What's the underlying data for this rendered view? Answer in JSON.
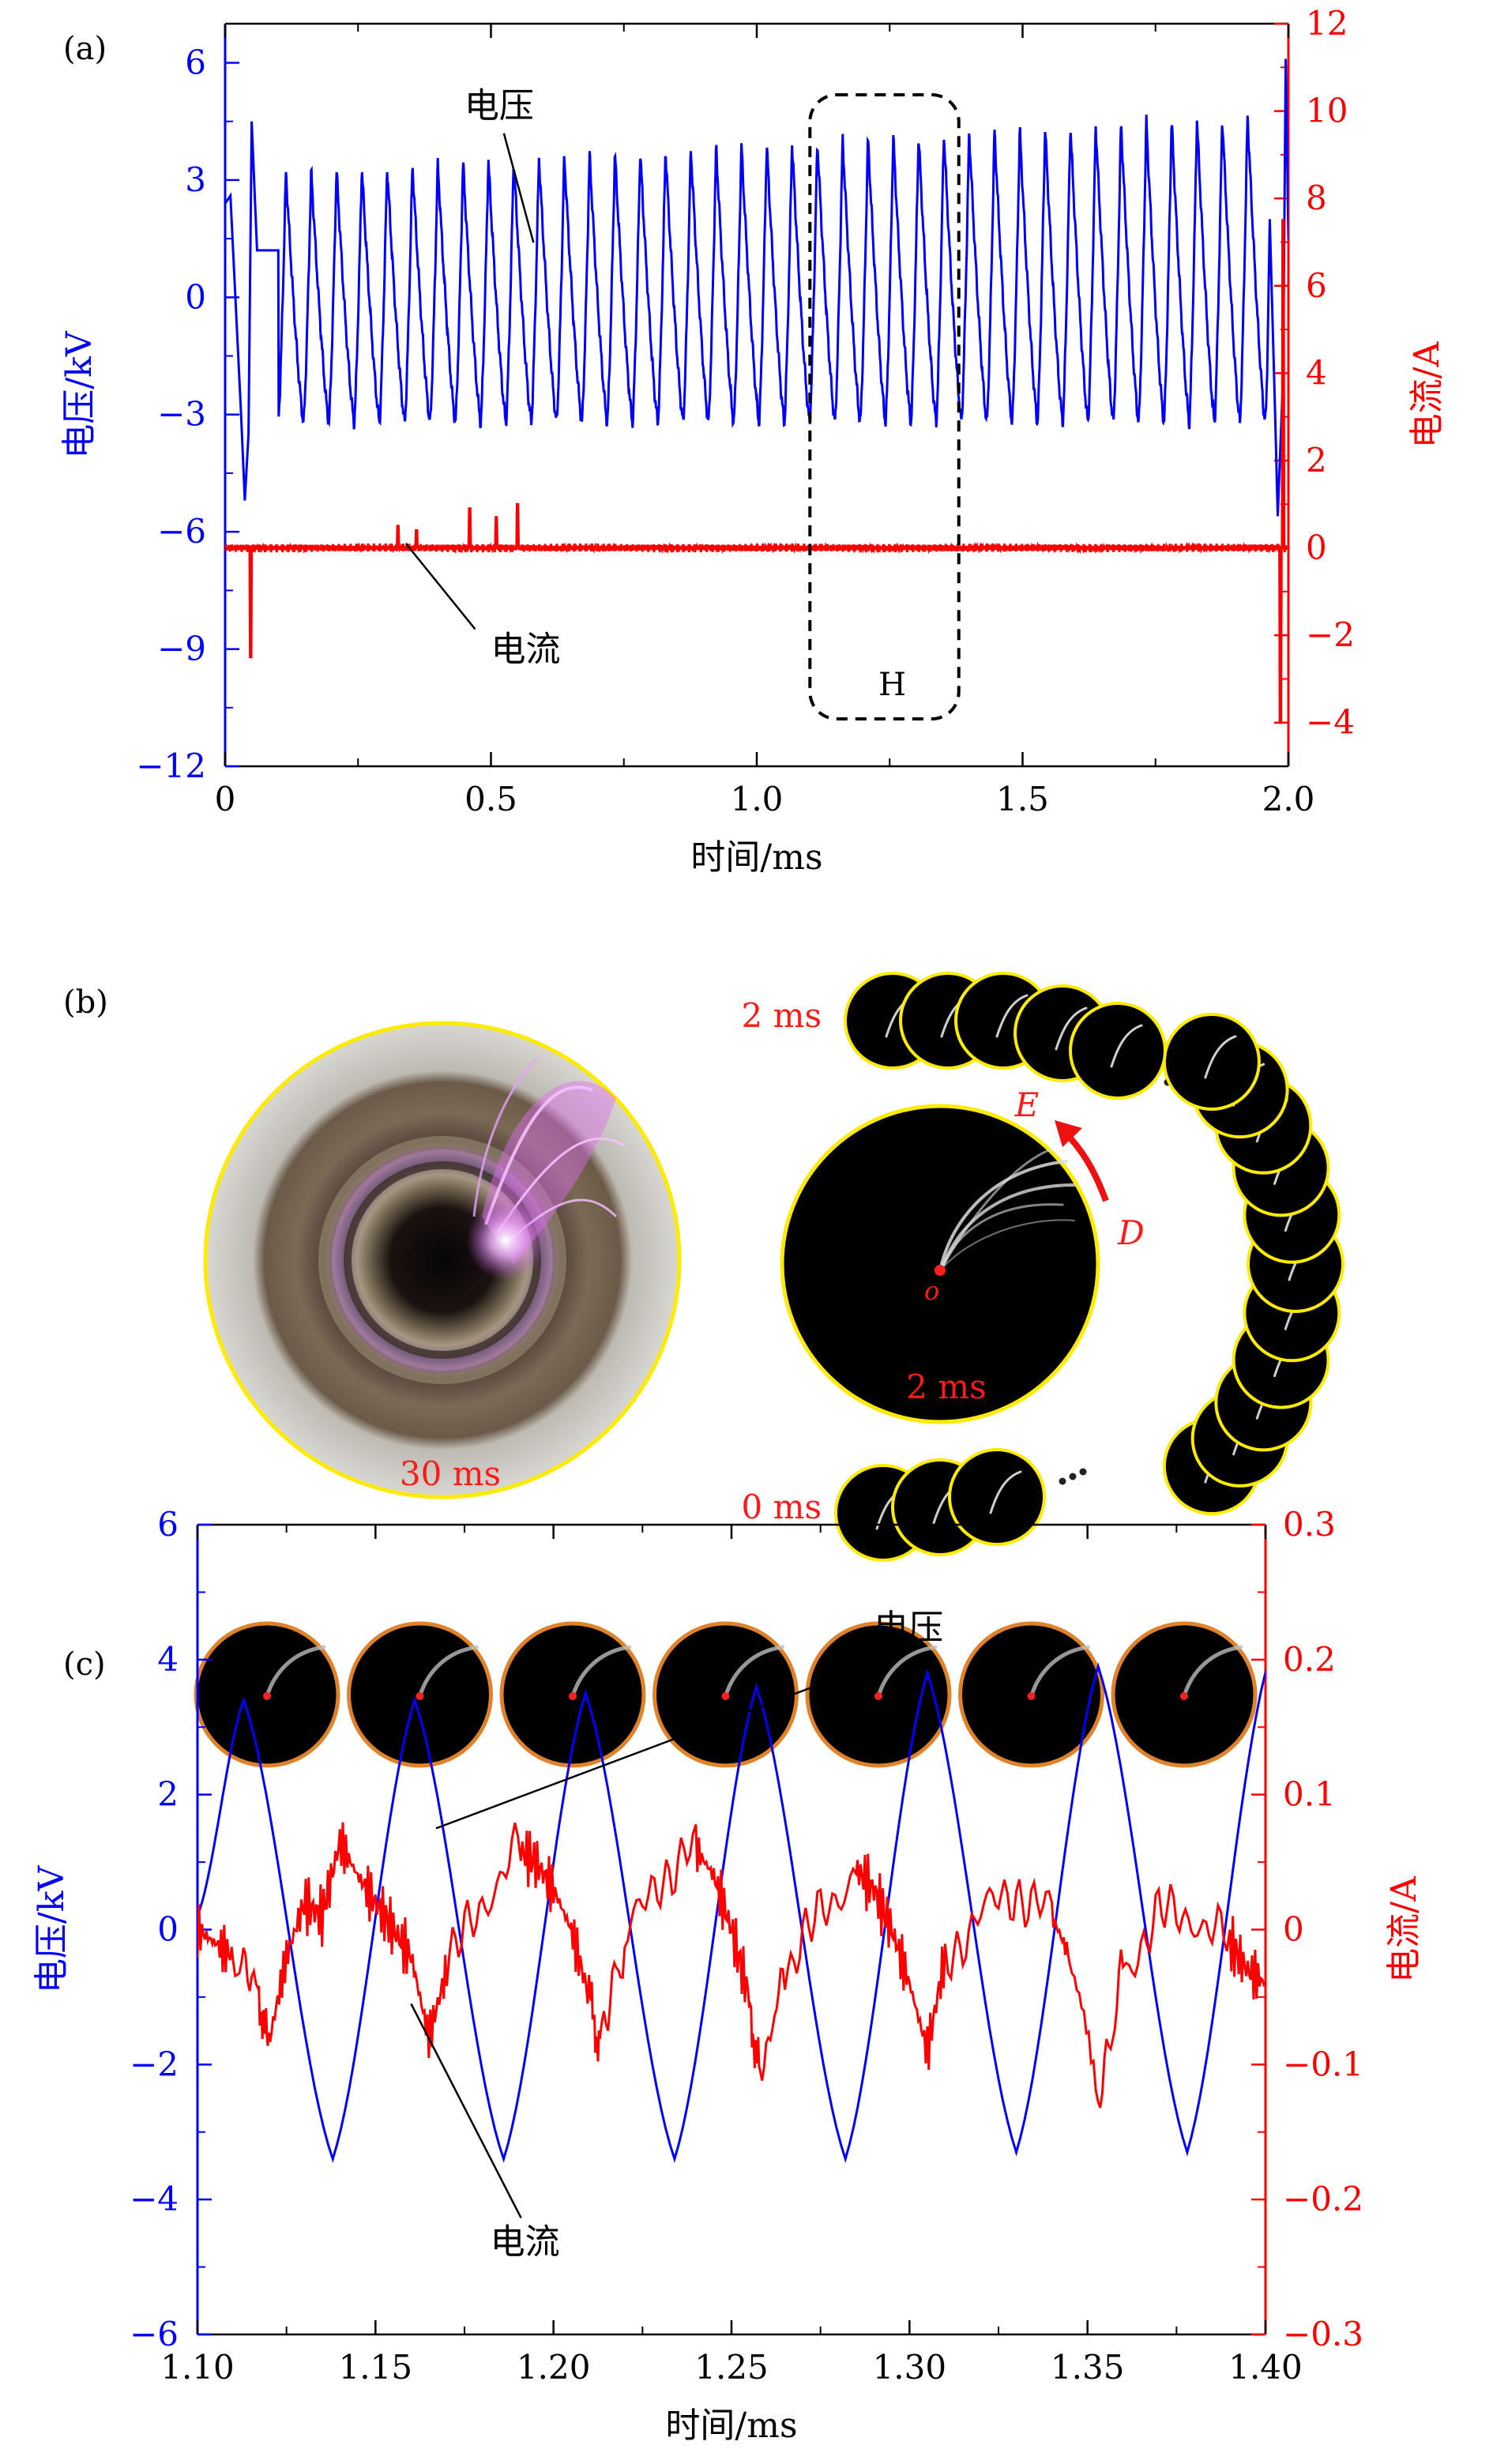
{
  "panels": {
    "a": {
      "label": "(a)",
      "chart_data": {
        "type": "line",
        "xlabel": "时间/ms",
        "ylabel_left": "电压/kV",
        "ylabel_right": "电流/A",
        "xlim": [
          0,
          2.0
        ],
        "ylim_left": [
          -12,
          7
        ],
        "ylim_right": [
          -5,
          12
        ],
        "xticks": [
          0,
          0.5,
          1.0,
          1.5,
          2.0
        ],
        "xtick_labels": [
          "0",
          "0.5",
          "1.0",
          "1.5",
          "2.0"
        ],
        "yticks_left": [
          6,
          3,
          0,
          -3,
          -6,
          -9,
          -12
        ],
        "ytick_labels_left": [
          "6",
          "3",
          "0",
          "−3",
          "−6",
          "−9",
          "−12"
        ],
        "yticks_right": [
          12,
          10,
          8,
          6,
          4,
          2,
          0,
          -2,
          -4
        ],
        "ytick_labels_right": [
          "12",
          "10",
          "8",
          "6",
          "4",
          "2",
          "0",
          "−2",
          "−4"
        ],
        "left_axis_color": "#0000ff",
        "right_axis_color": "#ff0000",
        "series": [
          {
            "name": "电压",
            "axis": "left",
            "color": "#0000ff",
            "period_ms": 0.0476,
            "oscillation_start_ms": 0.1,
            "oscillation_end_ms": 1.96,
            "peak_start_kV": 3.2,
            "peak_end_kV": 4.7,
            "trough_start_kV": -3.2,
            "trough_end_kV": -3.2,
            "transients": [
              {
                "t": 0.0,
                "v": 2.4
              },
              {
                "t": 0.01,
                "v": 2.6
              },
              {
                "t": 0.03,
                "v": -3.0
              },
              {
                "t": 0.037,
                "v": -5.2
              },
              {
                "t": 0.044,
                "v": -3.5
              },
              {
                "t": 0.05,
                "v": 4.5
              },
              {
                "t": 0.06,
                "v": 1.2
              },
              {
                "t": 1.965,
                "v": 2.0
              },
              {
                "t": 1.975,
                "v": -3.0
              },
              {
                "t": 1.98,
                "v": -5.6
              },
              {
                "t": 1.99,
                "v": -2.0
              },
              {
                "t": 1.995,
                "v": 6.1
              },
              {
                "t": 2.0,
                "v": 1.5
              }
            ]
          },
          {
            "name": "电流",
            "axis": "right",
            "color": "#ff0000",
            "baseline_A": 0.0,
            "negative_spike": {
              "t": 0.048,
              "v": -2.5
            },
            "end_spikes": [
              {
                "t": 1.985,
                "v": -4.0
              },
              {
                "t": 1.99,
                "v": 7.5
              }
            ],
            "pulse_spikes": [
              {
                "t": 0.46,
                "v": 0.9
              },
              {
                "t": 0.51,
                "v": 0.7
              },
              {
                "t": 0.55,
                "v": 1.0
              },
              {
                "t": 0.325,
                "v": 0.5
              },
              {
                "t": 0.36,
                "v": 0.4
              }
            ]
          }
        ],
        "annotations": [
          {
            "text": "电压",
            "series": "电压",
            "tx": 0.45,
            "ty_left": 4.6,
            "px": 0.58,
            "py_left": 1.4
          },
          {
            "text": "电流",
            "series": "电流",
            "tx": 0.5,
            "ty_left": -9.3,
            "px": 0.34,
            "py_left": -6.3
          },
          {
            "text": "H",
            "region": [
              1.1,
              1.38
            ]
          }
        ]
      }
    },
    "b": {
      "label": "(b)",
      "photo_time": "30 ms",
      "center_time": "2 ms",
      "start_time_label": "0 ms",
      "end_time_label": "2 ms",
      "label_E": "E",
      "label_D": "D",
      "label_o": "o",
      "frame_color": "#ffeb00",
      "text_color": "#ff1a1a",
      "arc_frame_count": 19
    },
    "c": {
      "label": "(c)",
      "frame_color": "#e0822a",
      "frame_count": 7,
      "chart_data": {
        "type": "line",
        "xlabel": "时间/ms",
        "ylabel_left": "电压/kV",
        "ylabel_right": "电流/A",
        "xlim": [
          1.1,
          1.4
        ],
        "ylim_left": [
          -6,
          6
        ],
        "ylim_right": [
          -0.3,
          0.3
        ],
        "xticks": [
          1.1,
          1.15,
          1.2,
          1.25,
          1.3,
          1.35,
          1.4
        ],
        "xtick_labels": [
          "1.10",
          "1.15",
          "1.20",
          "1.25",
          "1.30",
          "1.35",
          "1.40"
        ],
        "yticks_left": [
          6,
          4,
          2,
          0,
          -2,
          -4,
          -6
        ],
        "ytick_labels_left": [
          "6",
          "4",
          "2",
          "0",
          "−2",
          "−4",
          "−6"
        ],
        "yticks_right": [
          0.3,
          0.2,
          0.1,
          0,
          -0.1,
          -0.2,
          -0.3
        ],
        "ytick_labels_right": [
          "0.3",
          "0.2",
          "0.1",
          "0",
          "−0.1",
          "−0.2",
          "−0.3"
        ],
        "left_axis_color": "#0000ff",
        "right_axis_color": "#ff0000",
        "series": [
          {
            "name": "电压",
            "axis": "left",
            "color": "#0000ff",
            "peaks": [
              {
                "t": 1.113,
                "v": 3.4
              },
              {
                "t": 1.161,
                "v": 3.4
              },
              {
                "t": 1.209,
                "v": 3.5
              },
              {
                "t": 1.257,
                "v": 3.6
              },
              {
                "t": 1.305,
                "v": 3.8
              },
              {
                "t": 1.353,
                "v": 3.9
              },
              {
                "t": 1.401,
                "v": 4.0
              }
            ],
            "troughs": [
              {
                "t": 1.1,
                "v": 0.2
              },
              {
                "t": 1.138,
                "v": -3.4
              },
              {
                "t": 1.186,
                "v": -3.4
              },
              {
                "t": 1.234,
                "v": -3.4
              },
              {
                "t": 1.282,
                "v": -3.4
              },
              {
                "t": 1.33,
                "v": -3.3
              },
              {
                "t": 1.378,
                "v": -3.3
              }
            ]
          },
          {
            "name": "电流",
            "axis": "right",
            "color": "#ff0000",
            "points": [
              [
                1.1,
                0.0
              ],
              [
                1.105,
                -0.01
              ],
              [
                1.11,
                -0.02
              ],
              [
                1.117,
                -0.04
              ],
              [
                1.12,
                -0.085
              ],
              [
                1.125,
                -0.02
              ],
              [
                1.13,
                0.02
              ],
              [
                1.135,
                0.01
              ],
              [
                1.14,
                0.065
              ],
              [
                1.145,
                0.04
              ],
              [
                1.15,
                0.02
              ],
              [
                1.155,
                0.0
              ],
              [
                1.16,
                -0.02
              ],
              [
                1.165,
                -0.08
              ],
              [
                1.17,
                -0.03
              ],
              [
                1.18,
                0.02
              ],
              [
                1.19,
                0.06
              ],
              [
                1.195,
                0.05
              ],
              [
                1.2,
                0.03
              ],
              [
                1.205,
                0.0
              ],
              [
                1.21,
                -0.05
              ],
              [
                1.213,
                -0.08
              ],
              [
                1.22,
                -0.01
              ],
              [
                1.23,
                0.04
              ],
              [
                1.24,
                0.06
              ],
              [
                1.245,
                0.04
              ],
              [
                1.25,
                0.0
              ],
              [
                1.255,
                -0.05
              ],
              [
                1.258,
                -0.11
              ],
              [
                1.265,
                -0.03
              ],
              [
                1.275,
                0.01
              ],
              [
                1.285,
                0.045
              ],
              [
                1.29,
                0.03
              ],
              [
                1.295,
                0.0
              ],
              [
                1.3,
                -0.04
              ],
              [
                1.305,
                -0.09
              ],
              [
                1.31,
                -0.02
              ],
              [
                1.32,
                0.01
              ],
              [
                1.33,
                0.03
              ],
              [
                1.34,
                0.01
              ],
              [
                1.345,
                -0.02
              ],
              [
                1.353,
                -0.13
              ],
              [
                1.36,
                -0.03
              ],
              [
                1.37,
                0.01
              ],
              [
                1.38,
                0.01
              ],
              [
                1.39,
                -0.01
              ],
              [
                1.395,
                -0.03
              ],
              [
                1.4,
                -0.04
              ]
            ]
          }
        ],
        "annotations": [
          {
            "text": "电压",
            "series": "电压",
            "tx": 1.29,
            "ty_left": 4.3,
            "px": 1.167,
            "py_left": 1.5
          },
          {
            "text": "电流",
            "series": "电流",
            "tx": 1.192,
            "ty_left": -4.8,
            "px": 1.16,
            "py_left": -1.1
          }
        ]
      }
    }
  }
}
